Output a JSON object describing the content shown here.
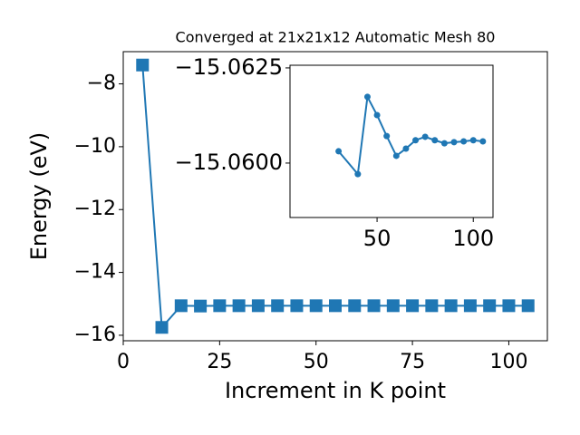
{
  "chart_data": [
    {
      "type": "line",
      "title": "Converged at 21x21x12 Automatic Mesh 80",
      "xlabel": "Increment in K point",
      "ylabel": "Energy (eV)",
      "x": [
        5,
        10,
        15,
        20,
        25,
        30,
        35,
        40,
        45,
        50,
        55,
        60,
        65,
        70,
        75,
        80,
        85,
        90,
        95,
        100,
        105
      ],
      "series": [
        {
          "color": "#1f77b4",
          "marker": "square",
          "values": [
            -7.4,
            -15.75,
            -15.06,
            -15.07,
            -15.06,
            -15.06,
            -15.06,
            -15.06,
            -15.06,
            -15.06,
            -15.06,
            -15.06,
            -15.06,
            -15.06,
            -15.06,
            -15.06,
            -15.06,
            -15.06,
            -15.06,
            -15.06,
            -15.06
          ]
        }
      ],
      "xlim": [
        0,
        110
      ],
      "ylim": [
        -16.175,
        -6.975
      ],
      "xticks": [
        0,
        25,
        50,
        75,
        100
      ],
      "yticks": [
        {
          "value": -16,
          "label": "−16"
        },
        {
          "value": -14,
          "label": "−14"
        },
        {
          "value": -12,
          "label": "−12"
        },
        {
          "value": -10,
          "label": "−10"
        },
        {
          "value": -8,
          "label": "−8"
        }
      ]
    },
    {
      "type": "line",
      "x": [
        30,
        40,
        45,
        50,
        55,
        60,
        65,
        70,
        75,
        80,
        85,
        90,
        95,
        100,
        105
      ],
      "series": [
        {
          "color": "#1f77b4",
          "marker": "circle",
          "values": [
            -15.06031,
            -15.05971,
            -15.06174,
            -15.06126,
            -15.06071,
            -15.06019,
            -15.06038,
            -15.0606,
            -15.06069,
            -15.0606,
            -15.06052,
            -15.06055,
            -15.06057,
            -15.0606,
            -15.06057
          ]
        }
      ],
      "xlim": [
        4.75,
        110.25
      ],
      "ylim": [
        -15.06257,
        -15.05857
      ],
      "yinverted": true,
      "xticks": [
        50,
        100
      ],
      "yticks": [
        {
          "value": -15.0625,
          "label": "−15.0625"
        },
        {
          "value": -15.06,
          "label": "−15.0600"
        }
      ]
    }
  ]
}
